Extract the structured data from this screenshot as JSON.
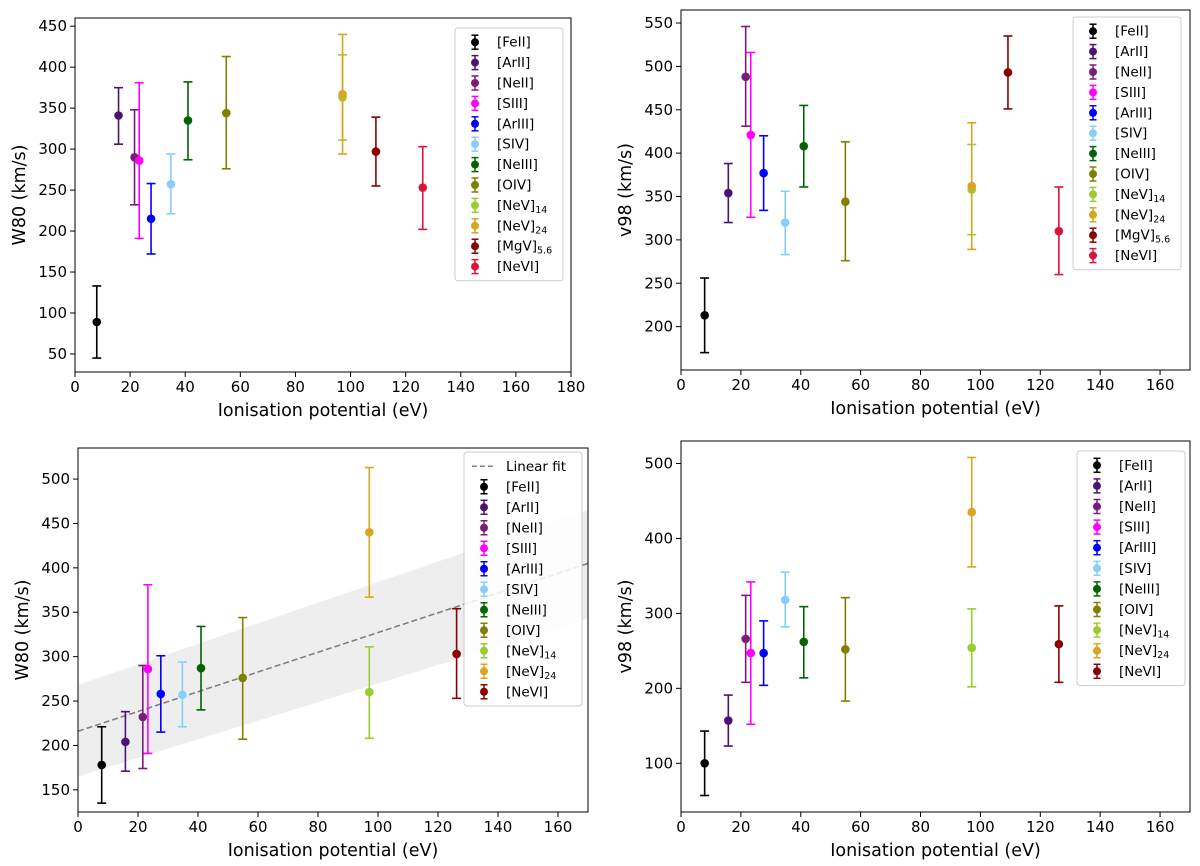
{
  "chart_data": [
    {
      "type": "scatter",
      "xlabel": "Ionisation potential (eV)",
      "ylabel": "W80 (km/s)",
      "xlim": [
        0,
        180
      ],
      "ylim": [
        28,
        460
      ],
      "xticks": [
        0,
        20,
        40,
        60,
        80,
        100,
        120,
        140,
        160,
        180
      ],
      "yticks": [
        50,
        100,
        150,
        200,
        250,
        300,
        350,
        400,
        450
      ],
      "legend_position": "top-right",
      "series": [
        {
          "name": "[FeII]",
          "sub": "",
          "color": "#000000",
          "points": [
            {
              "x": 7.9,
              "y": 89,
              "lo": 45,
              "hi": 133
            }
          ]
        },
        {
          "name": "[ArII]",
          "sub": "",
          "color": "#4b1474",
          "points": [
            {
              "x": 15.8,
              "y": 341,
              "lo": 306,
              "hi": 375
            }
          ]
        },
        {
          "name": "[NeII]",
          "sub": "",
          "color": "#7b1c78",
          "points": [
            {
              "x": 21.6,
              "y": 290,
              "lo": 232,
              "hi": 348
            }
          ]
        },
        {
          "name": "[SIII]",
          "sub": "",
          "color": "#ff00ff",
          "points": [
            {
              "x": 23.3,
              "y": 286,
              "lo": 191,
              "hi": 381
            }
          ]
        },
        {
          "name": "[ArIII]",
          "sub": "",
          "color": "#0000ff",
          "points": [
            {
              "x": 27.6,
              "y": 215,
              "lo": 172,
              "hi": 258
            }
          ]
        },
        {
          "name": "[SIV]",
          "sub": "",
          "color": "#87cefa",
          "points": [
            {
              "x": 34.8,
              "y": 257,
              "lo": 221,
              "hi": 294
            }
          ]
        },
        {
          "name": "[NeIII]",
          "sub": "",
          "color": "#006400",
          "points": [
            {
              "x": 41.0,
              "y": 335,
              "lo": 287,
              "hi": 382
            }
          ]
        },
        {
          "name": "[OIV]",
          "sub": "",
          "color": "#808000",
          "points": [
            {
              "x": 54.9,
              "y": 344,
              "lo": 276,
              "hi": 413
            }
          ]
        },
        {
          "name": "[NeV]",
          "sub": "14",
          "color": "#9acd32",
          "points": [
            {
              "x": 97.1,
              "y": 363,
              "lo": 311,
              "hi": 415
            }
          ]
        },
        {
          "name": "[NeV]",
          "sub": "24",
          "color": "#daa520",
          "points": [
            {
              "x": 97.1,
              "y": 367,
              "lo": 294,
              "hi": 440
            }
          ]
        },
        {
          "name": "[MgV]",
          "sub": "5.6",
          "color": "#8b0000",
          "points": [
            {
              "x": 109.2,
              "y": 297,
              "lo": 255,
              "hi": 339
            }
          ]
        },
        {
          "name": "[NeVI]",
          "sub": "",
          "color": "#dc143c",
          "points": [
            {
              "x": 126.2,
              "y": 253,
              "lo": 202,
              "hi": 303
            }
          ]
        }
      ]
    },
    {
      "type": "scatter",
      "xlabel": "Ionisation potential (eV)",
      "ylabel": "v98 (km/s)",
      "xlim": [
        0,
        170
      ],
      "ylim": [
        150,
        565
      ],
      "xticks": [
        0,
        20,
        40,
        60,
        80,
        100,
        120,
        140,
        160
      ],
      "yticks": [
        200,
        250,
        300,
        350,
        400,
        450,
        500,
        550
      ],
      "legend_position": "top-right",
      "series": [
        {
          "name": "[FeII]",
          "sub": "",
          "color": "#000000",
          "points": [
            {
              "x": 7.9,
              "y": 213,
              "lo": 170,
              "hi": 256
            }
          ]
        },
        {
          "name": "[ArII]",
          "sub": "",
          "color": "#4b1474",
          "points": [
            {
              "x": 15.8,
              "y": 354,
              "lo": 320,
              "hi": 388
            }
          ]
        },
        {
          "name": "[NeII]",
          "sub": "",
          "color": "#7b1c78",
          "points": [
            {
              "x": 21.6,
              "y": 488,
              "lo": 431,
              "hi": 546
            }
          ]
        },
        {
          "name": "[SIII]",
          "sub": "",
          "color": "#ff00ff",
          "points": [
            {
              "x": 23.3,
              "y": 421,
              "lo": 326,
              "hi": 516
            }
          ]
        },
        {
          "name": "[ArIII]",
          "sub": "",
          "color": "#0000ff",
          "points": [
            {
              "x": 27.6,
              "y": 377,
              "lo": 334,
              "hi": 420
            }
          ]
        },
        {
          "name": "[SIV]",
          "sub": "",
          "color": "#87cefa",
          "points": [
            {
              "x": 34.8,
              "y": 320,
              "lo": 283,
              "hi": 356
            }
          ]
        },
        {
          "name": "[NeIII]",
          "sub": "",
          "color": "#006400",
          "points": [
            {
              "x": 41.0,
              "y": 408,
              "lo": 361,
              "hi": 455
            }
          ]
        },
        {
          "name": "[OIV]",
          "sub": "",
          "color": "#808000",
          "points": [
            {
              "x": 54.9,
              "y": 344,
              "lo": 276,
              "hi": 413
            }
          ]
        },
        {
          "name": "[NeV]",
          "sub": "14",
          "color": "#9acd32",
          "points": [
            {
              "x": 97.1,
              "y": 358,
              "lo": 306,
              "hi": 410
            }
          ]
        },
        {
          "name": "[NeV]",
          "sub": "24",
          "color": "#daa520",
          "points": [
            {
              "x": 97.1,
              "y": 362,
              "lo": 289,
              "hi": 435
            }
          ]
        },
        {
          "name": "[MgV]",
          "sub": "5.6",
          "color": "#8b0000",
          "points": [
            {
              "x": 109.2,
              "y": 493,
              "lo": 451,
              "hi": 535
            }
          ]
        },
        {
          "name": "[NeVI]",
          "sub": "",
          "color": "#dc143c",
          "points": [
            {
              "x": 126.2,
              "y": 310,
              "lo": 260,
              "hi": 361
            }
          ]
        }
      ]
    },
    {
      "type": "scatter",
      "xlabel": "Ionisation potential (eV)",
      "ylabel": "W80 (km/s)",
      "xlim": [
        0,
        170
      ],
      "ylim": [
        125,
        535
      ],
      "xticks": [
        0,
        20,
        40,
        60,
        80,
        100,
        120,
        140,
        160
      ],
      "yticks": [
        150,
        200,
        250,
        300,
        350,
        400,
        450,
        500
      ],
      "legend_position": "top-right",
      "fit": {
        "label": "Linear fit",
        "color": "#808080",
        "band_color": "#eeeeee",
        "line": [
          [
            0,
            216
          ],
          [
            170,
            405
          ]
        ],
        "band_lower": [
          [
            0,
            165
          ],
          [
            170,
            343
          ]
        ],
        "band_upper": [
          [
            0,
            268
          ],
          [
            170,
            465
          ]
        ]
      },
      "series": [
        {
          "name": "[FeII]",
          "sub": "",
          "color": "#000000",
          "points": [
            {
              "x": 7.9,
              "y": 178,
              "lo": 135,
              "hi": 221
            }
          ]
        },
        {
          "name": "[ArII]",
          "sub": "",
          "color": "#4b1474",
          "points": [
            {
              "x": 15.8,
              "y": 204,
              "lo": 171,
              "hi": 238
            }
          ]
        },
        {
          "name": "[NeII]",
          "sub": "",
          "color": "#7b1c78",
          "points": [
            {
              "x": 21.6,
              "y": 232,
              "lo": 174,
              "hi": 290
            }
          ]
        },
        {
          "name": "[SIII]",
          "sub": "",
          "color": "#ff00ff",
          "points": [
            {
              "x": 23.3,
              "y": 286,
              "lo": 191,
              "hi": 381
            }
          ]
        },
        {
          "name": "[ArIII]",
          "sub": "",
          "color": "#0000ff",
          "points": [
            {
              "x": 27.6,
              "y": 258,
              "lo": 215,
              "hi": 301
            }
          ]
        },
        {
          "name": "[SIV]",
          "sub": "",
          "color": "#87cefa",
          "points": [
            {
              "x": 34.8,
              "y": 257,
              "lo": 221,
              "hi": 294
            }
          ]
        },
        {
          "name": "[NeIII]",
          "sub": "",
          "color": "#006400",
          "points": [
            {
              "x": 41.0,
              "y": 287,
              "lo": 240,
              "hi": 334
            }
          ]
        },
        {
          "name": "[OIV]",
          "sub": "",
          "color": "#808000",
          "points": [
            {
              "x": 54.9,
              "y": 276,
              "lo": 207,
              "hi": 344
            }
          ]
        },
        {
          "name": "[NeV]",
          "sub": "14",
          "color": "#9acd32",
          "points": [
            {
              "x": 97.1,
              "y": 260,
              "lo": 208,
              "hi": 311
            }
          ]
        },
        {
          "name": "[NeV]",
          "sub": "24",
          "color": "#daa520",
          "points": [
            {
              "x": 97.1,
              "y": 440,
              "lo": 367,
              "hi": 513
            }
          ]
        },
        {
          "name": "[NeVI]",
          "sub": "",
          "color": "#8b0000",
          "points": [
            {
              "x": 126.2,
              "y": 303,
              "lo": 253,
              "hi": 354
            }
          ]
        }
      ]
    },
    {
      "type": "scatter",
      "xlabel": "Ionisation potential (eV)",
      "ylabel": "v98 (km/s)",
      "xlim": [
        0,
        170
      ],
      "ylim": [
        35,
        530
      ],
      "xticks": [
        0,
        20,
        40,
        60,
        80,
        100,
        120,
        140,
        160
      ],
      "yticks": [
        100,
        200,
        300,
        400,
        500
      ],
      "legend_position": "top-right",
      "series": [
        {
          "name": "[FeII]",
          "sub": "",
          "color": "#000000",
          "points": [
            {
              "x": 7.9,
              "y": 100,
              "lo": 57,
              "hi": 143
            }
          ]
        },
        {
          "name": "[ArII]",
          "sub": "",
          "color": "#4b1474",
          "points": [
            {
              "x": 15.8,
              "y": 157,
              "lo": 123,
              "hi": 191
            }
          ]
        },
        {
          "name": "[NeII]",
          "sub": "",
          "color": "#7b1c78",
          "points": [
            {
              "x": 21.6,
              "y": 266,
              "lo": 208,
              "hi": 324
            }
          ]
        },
        {
          "name": "[SIII]",
          "sub": "",
          "color": "#ff00ff",
          "points": [
            {
              "x": 23.3,
              "y": 247,
              "lo": 152,
              "hi": 342
            }
          ]
        },
        {
          "name": "[ArIII]",
          "sub": "",
          "color": "#0000ff",
          "points": [
            {
              "x": 27.6,
              "y": 247,
              "lo": 204,
              "hi": 290
            }
          ]
        },
        {
          "name": "[SIV]",
          "sub": "",
          "color": "#87cefa",
          "points": [
            {
              "x": 34.8,
              "y": 318,
              "lo": 282,
              "hi": 355
            }
          ]
        },
        {
          "name": "[NeIII]",
          "sub": "",
          "color": "#006400",
          "points": [
            {
              "x": 41.0,
              "y": 262,
              "lo": 214,
              "hi": 309
            }
          ]
        },
        {
          "name": "[OIV]",
          "sub": "",
          "color": "#808000",
          "points": [
            {
              "x": 54.9,
              "y": 252,
              "lo": 183,
              "hi": 321
            }
          ]
        },
        {
          "name": "[NeV]",
          "sub": "14",
          "color": "#9acd32",
          "points": [
            {
              "x": 97.1,
              "y": 254,
              "lo": 202,
              "hi": 306
            }
          ]
        },
        {
          "name": "[NeV]",
          "sub": "24",
          "color": "#daa520",
          "points": [
            {
              "x": 97.1,
              "y": 435,
              "lo": 362,
              "hi": 508
            }
          ]
        },
        {
          "name": "[NeVI]",
          "sub": "",
          "color": "#8b0000",
          "points": [
            {
              "x": 126.2,
              "y": 259,
              "lo": 208,
              "hi": 310
            }
          ]
        }
      ]
    }
  ]
}
